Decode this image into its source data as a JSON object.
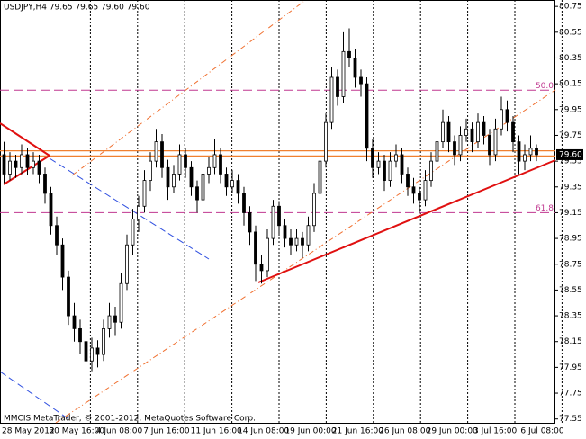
{
  "chart_data": {
    "type": "candlestick",
    "title": "USDJPY,H4 79.65 79.65 79.60 79.60",
    "footer": "MMCIS MetaTrader, © 2001-2012, MetaQuotes Software Corp.",
    "ylim": [
      77.52,
      80.8
    ],
    "yticks": [
      80.75,
      80.55,
      80.35,
      80.15,
      79.95,
      79.75,
      79.55,
      79.35,
      79.15,
      78.95,
      78.75,
      78.55,
      78.35,
      78.15,
      77.95,
      77.75,
      77.55
    ],
    "x_labels": [
      "28 May 2012",
      "30 May 16:00",
      "4 Jun 08:00",
      "7 Jun 16:00",
      "11 Jun 16:00",
      "14 Jun 08:00",
      "19 Jun 00:00",
      "21 Jun 16:00",
      "26 Jun 08:00",
      "29 Jun 00:00",
      "3 Jul 16:00",
      "6 Jul 08:00"
    ],
    "current_price": {
      "value": 79.6,
      "label": "79.60"
    },
    "fib_levels": [
      {
        "value": 80.1,
        "label": "50.0"
      },
      {
        "value": 79.15,
        "label": "61.8"
      }
    ],
    "hlines": [
      79.63,
      79.59
    ],
    "up_color": "#ffffff",
    "down_color": "#000000",
    "candles": [
      [
        79.6,
        79.7,
        79.38,
        79.45
      ],
      [
        79.45,
        79.62,
        79.4,
        79.55
      ],
      [
        79.55,
        79.6,
        79.42,
        79.5
      ],
      [
        79.5,
        79.68,
        79.45,
        79.6
      ],
      [
        79.6,
        79.65,
        79.44,
        79.5
      ],
      [
        79.5,
        79.62,
        79.45,
        79.55
      ],
      [
        79.55,
        79.6,
        79.38,
        79.45
      ],
      [
        79.45,
        79.5,
        79.22,
        79.3
      ],
      [
        79.3,
        79.35,
        78.98,
        79.05
      ],
      [
        79.05,
        79.12,
        78.82,
        78.9
      ],
      [
        78.9,
        78.95,
        78.55,
        78.65
      ],
      [
        78.65,
        78.7,
        78.28,
        78.35
      ],
      [
        78.35,
        78.45,
        78.15,
        78.25
      ],
      [
        78.25,
        78.32,
        78.05,
        78.15
      ],
      [
        78.15,
        78.22,
        77.72,
        78.0
      ],
      [
        78.0,
        78.18,
        77.92,
        78.1
      ],
      [
        78.1,
        78.16,
        77.95,
        78.05
      ],
      [
        78.05,
        78.32,
        78.0,
        78.25
      ],
      [
        78.25,
        78.45,
        78.18,
        78.35
      ],
      [
        78.35,
        78.42,
        78.2,
        78.3
      ],
      [
        78.3,
        78.68,
        78.25,
        78.6
      ],
      [
        78.6,
        78.98,
        78.55,
        78.9
      ],
      [
        78.9,
        79.18,
        78.82,
        79.1
      ],
      [
        79.1,
        79.28,
        79.0,
        79.2
      ],
      [
        79.2,
        79.48,
        79.15,
        79.4
      ],
      [
        79.4,
        79.62,
        79.32,
        79.55
      ],
      [
        79.55,
        79.8,
        79.5,
        79.7
      ],
      [
        79.7,
        79.76,
        79.42,
        79.5
      ],
      [
        79.5,
        79.56,
        79.25,
        79.35
      ],
      [
        79.35,
        79.52,
        79.3,
        79.45
      ],
      [
        79.45,
        79.68,
        79.4,
        79.6
      ],
      [
        79.6,
        79.65,
        79.42,
        79.5
      ],
      [
        79.5,
        79.55,
        79.28,
        79.35
      ],
      [
        79.35,
        79.4,
        79.15,
        79.25
      ],
      [
        79.25,
        79.52,
        79.2,
        79.45
      ],
      [
        79.45,
        79.58,
        79.38,
        79.5
      ],
      [
        79.5,
        79.72,
        79.45,
        79.6
      ],
      [
        79.6,
        79.65,
        79.38,
        79.45
      ],
      [
        79.45,
        79.5,
        79.28,
        79.35
      ],
      [
        79.35,
        79.48,
        79.3,
        79.4
      ],
      [
        79.4,
        79.45,
        79.22,
        79.3
      ],
      [
        79.3,
        79.35,
        79.05,
        79.15
      ],
      [
        79.15,
        79.2,
        78.9,
        79.0
      ],
      [
        79.0,
        79.05,
        78.62,
        78.75
      ],
      [
        78.75,
        78.82,
        78.6,
        78.7
      ],
      [
        78.7,
        79.02,
        78.65,
        78.95
      ],
      [
        78.95,
        79.25,
        78.9,
        79.2
      ],
      [
        79.2,
        79.24,
        78.98,
        79.05
      ],
      [
        79.05,
        79.1,
        78.88,
        78.95
      ],
      [
        78.95,
        79.02,
        78.82,
        78.9
      ],
      [
        78.9,
        79.02,
        78.85,
        78.95
      ],
      [
        78.95,
        79.0,
        78.8,
        78.9
      ],
      [
        78.9,
        79.12,
        78.85,
        79.05
      ],
      [
        79.05,
        79.38,
        79.0,
        79.3
      ],
      [
        79.3,
        79.62,
        79.25,
        79.55
      ],
      [
        79.55,
        79.92,
        79.5,
        79.85
      ],
      [
        79.85,
        80.28,
        79.8,
        80.2
      ],
      [
        80.2,
        80.26,
        79.98,
        80.05
      ],
      [
        80.05,
        80.55,
        80.0,
        80.4
      ],
      [
        80.4,
        80.58,
        80.28,
        80.35
      ],
      [
        80.35,
        80.42,
        80.12,
        80.2
      ],
      [
        80.2,
        80.26,
        80.05,
        80.15
      ],
      [
        80.15,
        80.2,
        79.55,
        79.65
      ],
      [
        79.65,
        79.72,
        79.42,
        79.5
      ],
      [
        79.5,
        79.62,
        79.45,
        79.55
      ],
      [
        79.55,
        79.6,
        79.32,
        79.4
      ],
      [
        79.4,
        79.62,
        79.35,
        79.55
      ],
      [
        79.55,
        79.68,
        79.5,
        79.6
      ],
      [
        79.6,
        79.65,
        79.38,
        79.45
      ],
      [
        79.45,
        79.5,
        79.28,
        79.35
      ],
      [
        79.35,
        79.42,
        79.22,
        79.3
      ],
      [
        79.3,
        79.35,
        79.15,
        79.25
      ],
      [
        79.25,
        79.48,
        79.2,
        79.4
      ],
      [
        79.4,
        79.62,
        79.35,
        79.55
      ],
      [
        79.55,
        79.78,
        79.5,
        79.7
      ],
      [
        79.7,
        79.95,
        79.65,
        79.85
      ],
      [
        79.85,
        79.9,
        79.62,
        79.7
      ],
      [
        79.7,
        79.75,
        79.52,
        79.6
      ],
      [
        79.6,
        79.82,
        79.55,
        79.75
      ],
      [
        79.75,
        79.88,
        79.7,
        79.8
      ],
      [
        79.8,
        79.85,
        79.62,
        79.7
      ],
      [
        79.7,
        79.92,
        79.65,
        79.85
      ],
      [
        79.85,
        79.9,
        79.68,
        79.75
      ],
      [
        79.75,
        79.8,
        79.52,
        79.6
      ],
      [
        79.6,
        79.88,
        79.55,
        79.8
      ],
      [
        79.8,
        80.05,
        79.75,
        79.95
      ],
      [
        79.95,
        80.02,
        79.78,
        79.85
      ],
      [
        79.85,
        79.9,
        79.62,
        79.7
      ],
      [
        79.7,
        79.75,
        79.45,
        79.55
      ],
      [
        79.55,
        79.68,
        79.48,
        79.6
      ],
      [
        79.6,
        79.75,
        79.55,
        79.65
      ],
      [
        79.65,
        79.68,
        79.55,
        79.6
      ]
    ]
  }
}
